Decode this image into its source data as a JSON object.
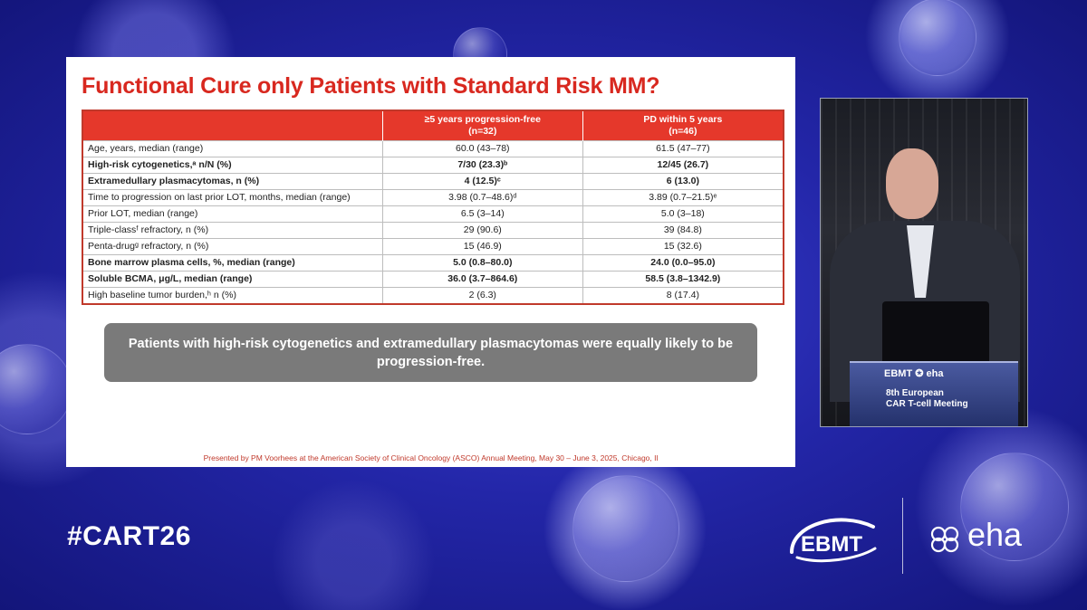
{
  "slide": {
    "title": "Functional Cure only Patients with Standard Risk MM?",
    "table": {
      "columns": [
        "",
        "≥5 years progression-free\n(n=32)",
        "PD within 5 years\n(n=46)"
      ],
      "col1_line1": "≥5 years progression-free",
      "col1_line2": "(n=32)",
      "col2_line1": "PD within 5 years",
      "col2_line2": "(n=46)",
      "rows": [
        {
          "label": "Age, years, median (range)",
          "a": "60.0 (43–78)",
          "b": "61.5 (47–77)",
          "bold": false
        },
        {
          "label": "High-risk cytogenetics,ᵃ n/N (%)",
          "a": "7/30 (23.3)ᵇ",
          "b": "12/45 (26.7)",
          "bold": true
        },
        {
          "label": "Extramedullary plasmacytomas, n (%)",
          "a": "4 (12.5)ᶜ",
          "b": "6 (13.0)",
          "bold": true
        },
        {
          "label": "Time to progression on last prior LOT, months, median (range)",
          "a": "3.98 (0.7–48.6)ᵈ",
          "b": "3.89 (0.7–21.5)ᵉ",
          "bold": false
        },
        {
          "label": "Prior LOT, median (range)",
          "a": "6.5 (3–14)",
          "b": "5.0 (3–18)",
          "bold": false
        },
        {
          "label": "Triple-classᶠ refractory, n (%)",
          "a": "29 (90.6)",
          "b": "39 (84.8)",
          "bold": false
        },
        {
          "label": "Penta-drugᵍ refractory, n (%)",
          "a": "15 (46.9)",
          "b": "15 (32.6)",
          "bold": false
        },
        {
          "label": "Bone marrow plasma cells, %, median (range)",
          "a": "5.0 (0.8–80.0)",
          "b": "24.0 (0.0–95.0)",
          "bold": true
        },
        {
          "label": "Soluble BCMA, μg/L, median (range)",
          "a": "36.0 (3.7–864.6)",
          "b": "58.5 (3.8–1342.9)",
          "bold": true
        },
        {
          "label": "High baseline tumor burden,ʰ n (%)",
          "a": "2 (6.3)",
          "b": "8 (17.4)",
          "bold": false
        }
      ]
    },
    "callout": "Patients with high-risk cytogenetics and extramedullary plasmacytomas were equally likely to be progression-free.",
    "footnote": "Presented by PM Voorhees at the American Society of Clinical Oncology (ASCO) Annual Meeting, May 30 – June 3, 2025, Chicago, Il"
  },
  "video": {
    "podium_logos": "EBMT ✪ eha",
    "podium_line1": "8th European",
    "podium_line2": "CAR T-cell Meeting"
  },
  "branding": {
    "hashtag": "#CART26",
    "ebmt": "EBMT",
    "eha": "eha"
  },
  "colors": {
    "accent_red": "#e5382b",
    "title_red": "#d8281f",
    "callout_gray": "#7a7a7a",
    "background_blue": "#2326a8"
  }
}
